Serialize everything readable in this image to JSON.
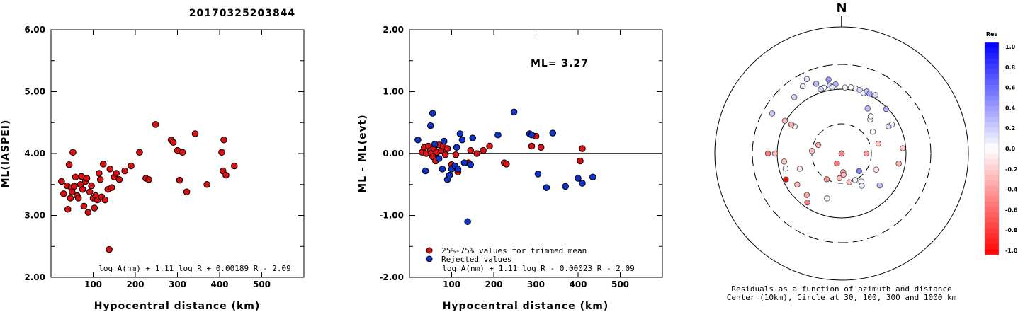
{
  "title": "20170325203844",
  "colors": {
    "accepted": "#dd1111",
    "rejected": "#1133cc",
    "axis": "#000000"
  },
  "chart_data": [
    {
      "type": "scatter",
      "name": "ml-vs-distance",
      "xlabel": "Hypocentral distance (km)",
      "ylabel": "ML(IASPEI)",
      "xlim": [
        0,
        600
      ],
      "ylim": [
        2.0,
        6.0
      ],
      "xticks": [
        "100",
        "200",
        "300",
        "400",
        "500"
      ],
      "yticks": [
        "2.00",
        "3.00",
        "4.00",
        "5.00",
        "6.00"
      ],
      "formula": "log A(nm) + 1.11 log R + 0.00189 R - 2.09",
      "points": [
        [
          25,
          3.55
        ],
        [
          30,
          3.35
        ],
        [
          38,
          3.48
        ],
        [
          40,
          3.1
        ],
        [
          43,
          3.82
        ],
        [
          46,
          3.28
        ],
        [
          48,
          3.45
        ],
        [
          50,
          3.38
        ],
        [
          52,
          4.02
        ],
        [
          55,
          3.47
        ],
        [
          58,
          3.62
        ],
        [
          62,
          3.32
        ],
        [
          65,
          3.28
        ],
        [
          70,
          3.5
        ],
        [
          72,
          3.63
        ],
        [
          75,
          3.42
        ],
        [
          78,
          3.15
        ],
        [
          82,
          3.55
        ],
        [
          85,
          3.6
        ],
        [
          88,
          3.05
        ],
        [
          92,
          3.38
        ],
        [
          96,
          3.48
        ],
        [
          100,
          3.28
        ],
        [
          103,
          3.12
        ],
        [
          106,
          3.32
        ],
        [
          110,
          3.25
        ],
        [
          114,
          3.68
        ],
        [
          117,
          3.58
        ],
        [
          120,
          3.3
        ],
        [
          124,
          3.83
        ],
        [
          128,
          3.25
        ],
        [
          135,
          3.42
        ],
        [
          140,
          3.75
        ],
        [
          144,
          3.45
        ],
        [
          150,
          3.62
        ],
        [
          155,
          3.68
        ],
        [
          162,
          3.58
        ],
        [
          175,
          3.72
        ],
        [
          190,
          3.8
        ],
        [
          210,
          4.02
        ],
        [
          225,
          3.6
        ],
        [
          232,
          3.58
        ],
        [
          248,
          4.47
        ],
        [
          285,
          4.22
        ],
        [
          290,
          4.18
        ],
        [
          300,
          4.05
        ],
        [
          305,
          3.57
        ],
        [
          312,
          4.02
        ],
        [
          322,
          3.38
        ],
        [
          342,
          4.32
        ],
        [
          370,
          3.5
        ],
        [
          405,
          4.02
        ],
        [
          410,
          4.22
        ],
        [
          408,
          3.72
        ],
        [
          415,
          3.65
        ],
        [
          435,
          3.8
        ],
        [
          138,
          2.45
        ]
      ]
    },
    {
      "type": "scatter",
      "name": "residual-vs-distance",
      "xlabel": "Hypocentral distance (km)",
      "ylabel": "ML - ML(evt)",
      "xlim": [
        0,
        600
      ],
      "ylim": [
        -2.0,
        2.0
      ],
      "xticks": [
        "100",
        "200",
        "300",
        "400",
        "500"
      ],
      "yticks": [
        "-2.00",
        "-1.00",
        "0.00",
        "1.00",
        "2.00"
      ],
      "annotation": "ML= 3.27",
      "formula": "log A(nm) + 1.11 log R - 0.00023 R - 2.09",
      "legend": [
        {
          "label": "25%-75% values for trimmed mean",
          "series": "accepted"
        },
        {
          "label": "Rejected values",
          "series": "rejected"
        }
      ],
      "accepted": [
        [
          30,
          0.02
        ],
        [
          35,
          0.1
        ],
        [
          40,
          0.0
        ],
        [
          45,
          0.12
        ],
        [
          50,
          0.05
        ],
        [
          52,
          0.0
        ],
        [
          55,
          -0.05
        ],
        [
          58,
          0.08
        ],
        [
          62,
          -0.12
        ],
        [
          65,
          0.02
        ],
        [
          70,
          0.14
        ],
        [
          75,
          0.05
        ],
        [
          80,
          0.12
        ],
        [
          85,
          -0.02
        ],
        [
          90,
          0.08
        ],
        [
          100,
          -0.18
        ],
        [
          105,
          -0.22
        ],
        [
          110,
          -0.02
        ],
        [
          115,
          -0.3
        ],
        [
          140,
          -0.15
        ],
        [
          145,
          0.05
        ],
        [
          160,
          0.0
        ],
        [
          175,
          0.05
        ],
        [
          190,
          0.12
        ],
        [
          225,
          -0.15
        ],
        [
          230,
          -0.17
        ],
        [
          290,
          0.12
        ],
        [
          300,
          0.28
        ],
        [
          312,
          0.1
        ],
        [
          405,
          -0.12
        ],
        [
          410,
          0.08
        ]
      ],
      "rejected": [
        [
          20,
          0.22
        ],
        [
          38,
          -0.28
        ],
        [
          50,
          0.45
        ],
        [
          55,
          0.65
        ],
        [
          60,
          0.15
        ],
        [
          70,
          -0.08
        ],
        [
          78,
          -0.25
        ],
        [
          82,
          0.2
        ],
        [
          90,
          -0.42
        ],
        [
          95,
          -0.35
        ],
        [
          100,
          -0.25
        ],
        [
          108,
          -0.2
        ],
        [
          112,
          0.1
        ],
        [
          115,
          -0.25
        ],
        [
          120,
          0.32
        ],
        [
          125,
          0.22
        ],
        [
          130,
          -0.15
        ],
        [
          138,
          -1.1
        ],
        [
          145,
          -0.18
        ],
        [
          150,
          0.25
        ],
        [
          210,
          0.3
        ],
        [
          248,
          0.67
        ],
        [
          285,
          0.32
        ],
        [
          290,
          0.3
        ],
        [
          305,
          -0.33
        ],
        [
          325,
          -0.55
        ],
        [
          340,
          0.33
        ],
        [
          370,
          -0.53
        ],
        [
          400,
          -0.4
        ],
        [
          410,
          -0.48
        ],
        [
          435,
          -0.38
        ]
      ]
    },
    {
      "type": "scatter",
      "name": "azimuth-residual-map",
      "north_label": "N",
      "caption_line1": "Residuals as a function of azimuth and distance",
      "caption_line2": "Center (10km), Circle at 30, 100, 300 and 1000 km",
      "colorbar_title": "Res",
      "colorbar_ticks": [
        "1.0",
        "0.8",
        "0.6",
        "0.4",
        "0.2",
        "0.0",
        "-0.2",
        "-0.4",
        "-0.6",
        "-0.8",
        "-1.0"
      ],
      "rings_km": [
        30,
        100,
        300,
        1000
      ],
      "stations": [
        [
          12,
          110,
          0.05
        ],
        [
          16,
          108,
          0.15
        ],
        [
          20,
          100,
          0.05
        ],
        [
          22,
          112,
          0.25
        ],
        [
          -5,
          125,
          0.3
        ],
        [
          -10,
          122,
          0.2
        ],
        [
          -15,
          118,
          0.0
        ],
        [
          -18,
          115,
          0.2
        ],
        [
          3,
          108,
          0.05
        ],
        [
          8,
          112,
          0.0
        ],
        [
          25,
          108,
          0.35
        ],
        [
          -8,
          112,
          0.1
        ],
        [
          30,
          115,
          0.15
        ],
        [
          45,
          95,
          0.3
        ],
        [
          60,
          80,
          0.05
        ],
        [
          -60,
          70,
          0.05
        ],
        [
          -10,
          160,
          0.4
        ],
        [
          -20,
          155,
          0.3
        ],
        [
          -60,
          200,
          0.2
        ],
        [
          -25,
          220,
          0.1
        ],
        [
          40,
          50,
          0.0
        ],
        [
          55,
          40,
          0.0
        ],
        [
          30,
          -65,
          0.25
        ],
        [
          38,
          -55,
          0.0
        ],
        [
          60,
          -70,
          0.15
        ],
        [
          75,
          -40,
          -0.3
        ],
        [
          85,
          -10,
          -0.2
        ],
        [
          90,
          25,
          -0.4
        ],
        [
          85,
          90,
          -0.25
        ],
        [
          100,
          80,
          -0.3
        ],
        [
          115,
          -40,
          -0.15
        ],
        [
          130,
          60,
          0.25
        ],
        [
          135,
          -25,
          0.5
        ],
        [
          140,
          8,
          0.2
        ],
        [
          145,
          -35,
          0.0
        ],
        [
          148,
          -40,
          0.1
        ],
        [
          153,
          -30,
          0.05
        ],
        [
          165,
          -30,
          -0.25
        ],
        [
          175,
          -20,
          -0.35
        ],
        [
          175,
          -22,
          -0.3
        ],
        [
          185,
          -25,
          -0.3
        ],
        [
          178,
          -8,
          -0.3
        ],
        [
          195,
          -10,
          -0.5
        ],
        [
          205,
          -15,
          -0.55
        ],
        [
          210,
          -30,
          -0.4
        ],
        [
          198,
          -55,
          0.05
        ],
        [
          215,
          -85,
          -0.5
        ],
        [
          220,
          -70,
          -0.35
        ],
        [
          235,
          -70,
          -0.3
        ],
        [
          245,
          -90,
          -0.95
        ],
        [
          250,
          -50,
          -0.1
        ],
        [
          255,
          -80,
          0.0
        ],
        [
          262,
          -80,
          -0.2
        ],
        [
          275,
          -30,
          -0.25
        ],
        [
          290,
          -25,
          -0.35
        ],
        [
          300,
          -80,
          -0.35
        ],
        [
          270,
          -110,
          -0.3
        ],
        [
          300,
          -105,
          -0.25
        ],
        [
          270,
          -150,
          -0.55
        ],
        [
          320,
          -150,
          0.15
        ],
        [
          330,
          -180,
          0.1
        ]
      ]
    }
  ]
}
